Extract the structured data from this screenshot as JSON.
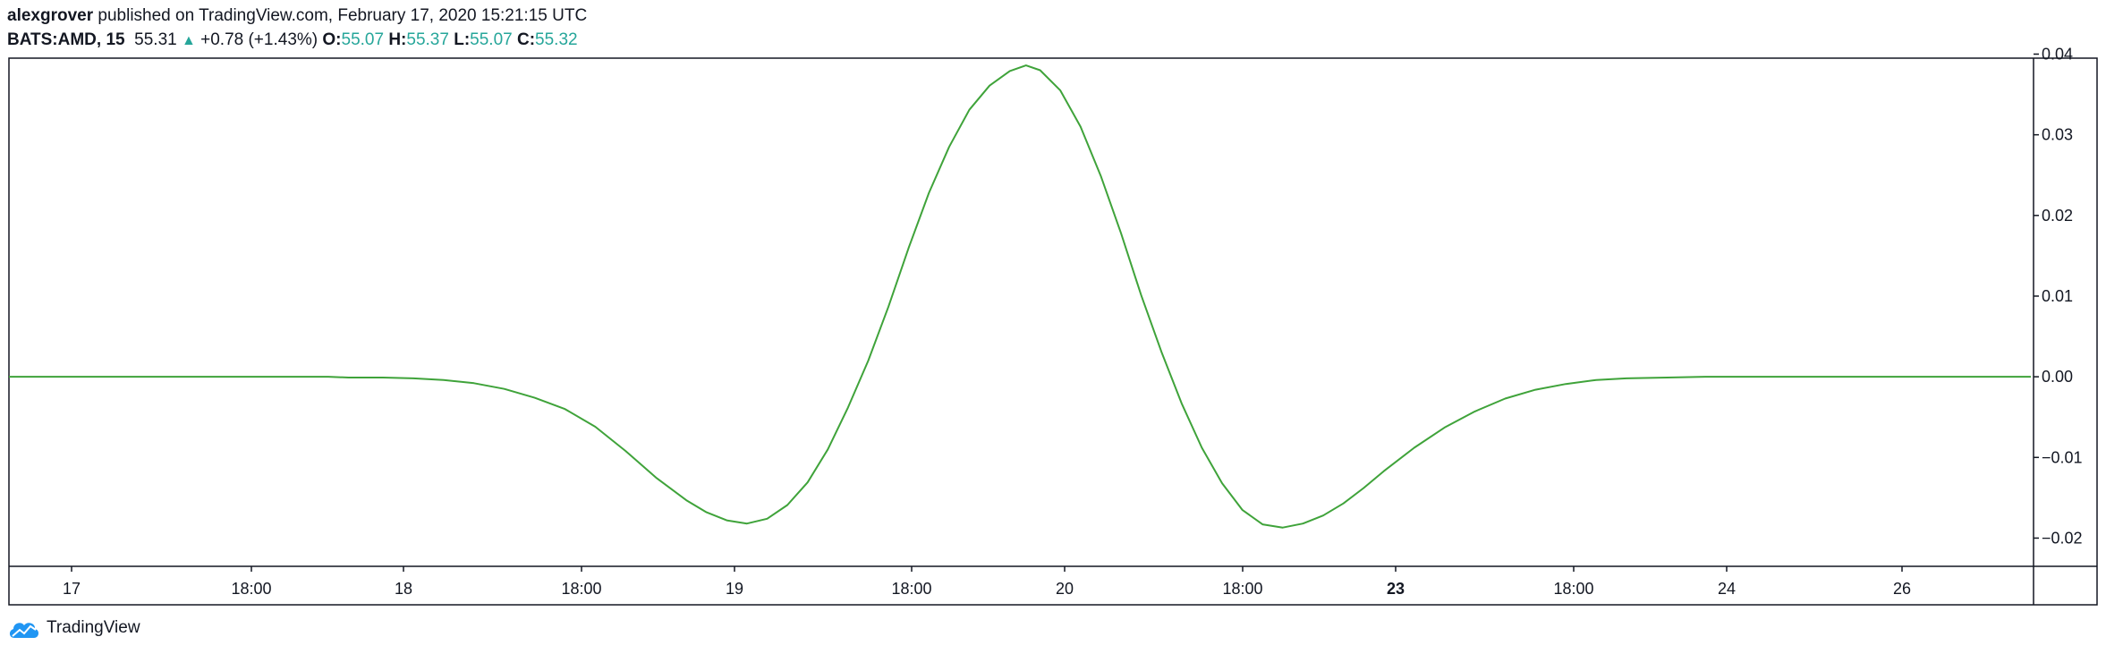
{
  "header": {
    "author": "alexgrover",
    "published_text": "published on TradingView.com, February 17, 2020 15:21:15 UTC",
    "symbol": "BATS:AMD, 15",
    "last_price": "55.31",
    "change": "+0.78 (+1.43%)",
    "open_label": "O:",
    "open": "55.07",
    "high_label": "H:",
    "high": "55.37",
    "low_label": "L:",
    "low": "55.07",
    "close_label": "C:",
    "close": "55.32",
    "up_icon": "triangle-up-icon"
  },
  "footer": {
    "brand": "TradingView",
    "logo_icon": "tradingview-cloud-icon"
  },
  "colors": {
    "line": "#3fa33a",
    "value": "#26a69a",
    "axis": "#131722"
  },
  "chart_data": {
    "type": "line",
    "xlabel": "",
    "ylabel": "",
    "ylim": [
      -0.0235,
      0.0395
    ],
    "x_tick_labels": [
      "17",
      "18:00",
      "18",
      "18:00",
      "19",
      "18:00",
      "20",
      "18:00",
      "23",
      "18:00",
      "24",
      "26"
    ],
    "y_tick_labels": [
      "0.04",
      "0.03",
      "0.02",
      "0.01",
      "0.00",
      "−0.01",
      "−0.02"
    ],
    "y_ticks": [
      0.04,
      0.03,
      0.02,
      0.01,
      0.0,
      -0.01,
      -0.02
    ],
    "x_range": [
      0,
      100
    ],
    "series": [
      {
        "values": [
          [
            0,
            0.0
          ],
          [
            15.8,
            0.0
          ],
          [
            16.8,
            -0.0001
          ],
          [
            18.5,
            -0.0001
          ],
          [
            20,
            -0.0002
          ],
          [
            21.5,
            -0.0004
          ],
          [
            23,
            -0.0008
          ],
          [
            24.5,
            -0.0015
          ],
          [
            26,
            -0.0026
          ],
          [
            27.5,
            -0.004
          ],
          [
            29,
            -0.0062
          ],
          [
            30.5,
            -0.0092
          ],
          [
            32,
            -0.0125
          ],
          [
            33.5,
            -0.0153
          ],
          [
            34.5,
            -0.0168
          ],
          [
            35.5,
            -0.0178
          ],
          [
            36.5,
            -0.0182
          ],
          [
            37.5,
            -0.0176
          ],
          [
            38.5,
            -0.0159
          ],
          [
            39.5,
            -0.0131
          ],
          [
            40.5,
            -0.009
          ],
          [
            41.5,
            -0.0038
          ],
          [
            42.5,
            0.002
          ],
          [
            43.5,
            0.0087
          ],
          [
            44.5,
            0.016
          ],
          [
            45.5,
            0.0228
          ],
          [
            46.5,
            0.0285
          ],
          [
            47.5,
            0.0331
          ],
          [
            48.5,
            0.0361
          ],
          [
            49.5,
            0.0379
          ],
          [
            50.3,
            0.0386
          ],
          [
            51,
            0.038
          ],
          [
            52,
            0.0355
          ],
          [
            53,
            0.031
          ],
          [
            54,
            0.0249
          ],
          [
            55,
            0.0178
          ],
          [
            56,
            0.0101
          ],
          [
            57,
            0.0031
          ],
          [
            58,
            -0.0033
          ],
          [
            59,
            -0.0088
          ],
          [
            60,
            -0.0132
          ],
          [
            61,
            -0.0165
          ],
          [
            62,
            -0.0183
          ],
          [
            63,
            -0.0187
          ],
          [
            64,
            -0.0182
          ],
          [
            65,
            -0.0172
          ],
          [
            66,
            -0.0157
          ],
          [
            67,
            -0.0138
          ],
          [
            68,
            -0.0117
          ],
          [
            69.5,
            -0.0088
          ],
          [
            71,
            -0.0063
          ],
          [
            72.5,
            -0.0043
          ],
          [
            74,
            -0.0027
          ],
          [
            75.5,
            -0.0016
          ],
          [
            77,
            -0.0009
          ],
          [
            78.5,
            -0.0004
          ],
          [
            80,
            -0.0002
          ],
          [
            82,
            -0.0001
          ],
          [
            84,
            0.0
          ],
          [
            100,
            0.0
          ]
        ]
      }
    ]
  }
}
